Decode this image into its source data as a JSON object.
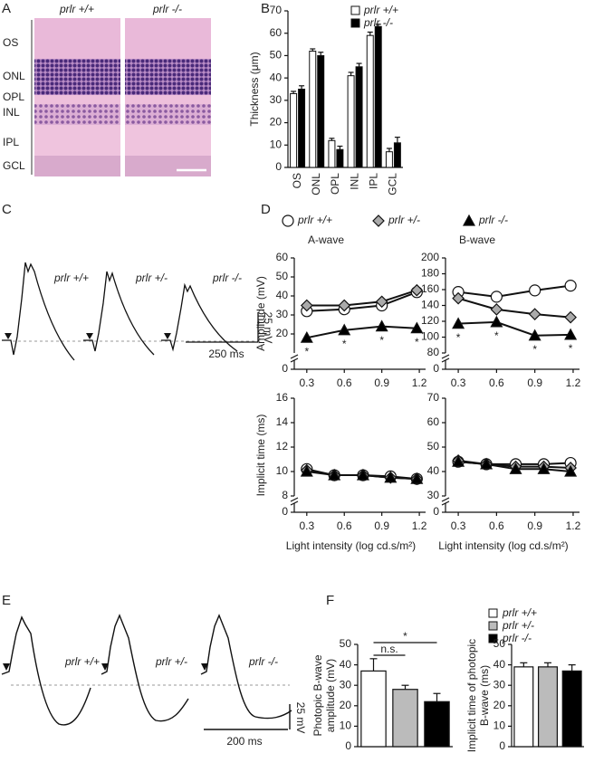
{
  "panel_labels": [
    "A",
    "B",
    "C",
    "D",
    "E",
    "F"
  ],
  "histology": {
    "genotypes": [
      "prlr +/+",
      "prlr -/-"
    ],
    "layers": [
      "OS",
      "ONL",
      "OPL",
      "INL",
      "IPL",
      "GCL"
    ]
  },
  "traces_c": {
    "labels": [
      "prlr +/+",
      "prlr +/-",
      "prlr -/-"
    ],
    "scale_y": "25 mV",
    "scale_x": "250 ms"
  },
  "traces_e": {
    "labels": [
      "prlr +/+",
      "prlr +/-",
      "prlr -/-"
    ],
    "scale_y": "25 mV",
    "scale_x": "200 ms"
  },
  "chart_data": [
    {
      "type": "bar",
      "y_label": "Thickness (μm)",
      "categories": [
        "OS",
        "ONL",
        "OPL",
        "INL",
        "IPL",
        "GCL"
      ],
      "series": [
        {
          "name": "prlr +/+",
          "color": "#ffffff",
          "values": [
            33,
            52,
            12,
            41,
            59,
            7
          ],
          "errors": [
            1,
            1,
            1,
            1.5,
            1.5,
            1.5
          ]
        },
        {
          "name": "prlr -/-",
          "color": "#000000",
          "values": [
            35,
            50,
            8,
            45,
            63,
            11
          ],
          "errors": [
            1.5,
            1.5,
            1.5,
            1.5,
            1,
            2.5
          ]
        }
      ],
      "ylim": [
        0,
        70
      ],
      "yticks": [
        0,
        10,
        20,
        30,
        40,
        50,
        60,
        70
      ]
    },
    {
      "type": "line",
      "title": "A-wave",
      "y_label": "Amplitude (mV)",
      "x": [
        0.3,
        0.6,
        0.9,
        1.18
      ],
      "series": [
        {
          "name": "prlr +/+",
          "color": "#ffffff",
          "marker": "circle",
          "values": [
            32,
            33,
            35,
            42
          ]
        },
        {
          "name": "prlr +/-",
          "color": "#aaaaaa",
          "marker": "diamond",
          "values": [
            35,
            35,
            37,
            43
          ]
        },
        {
          "name": "prlr -/-",
          "color": "#000000",
          "marker": "triangle",
          "values": [
            18,
            22,
            24,
            23
          ]
        }
      ],
      "stars": "*",
      "xlim": [
        0.2,
        1.25
      ],
      "xticks": [
        0.3,
        0.6,
        0.9,
        1.2
      ],
      "ylim": [
        10,
        60
      ],
      "yticks": [
        20,
        30,
        40,
        50,
        60
      ],
      "y_origin_label": 0
    },
    {
      "type": "line",
      "title": "B-wave",
      "x": [
        0.3,
        0.6,
        0.9,
        1.18
      ],
      "series": [
        {
          "name": "prlr +/+",
          "color": "#ffffff",
          "marker": "circle",
          "values": [
            157,
            151,
            159,
            165
          ]
        },
        {
          "name": "prlr +/-",
          "color": "#aaaaaa",
          "marker": "diamond",
          "values": [
            149,
            135,
            129,
            125
          ]
        },
        {
          "name": "prlr -/-",
          "color": "#000000",
          "marker": "triangle",
          "values": [
            117,
            119,
            102,
            103
          ]
        }
      ],
      "stars": "*",
      "xlim": [
        0.2,
        1.25
      ],
      "xticks": [
        0.3,
        0.6,
        0.9,
        1.2
      ],
      "ylim": [
        80,
        200
      ],
      "yticks": [
        80,
        100,
        120,
        140,
        160,
        180,
        200
      ],
      "y_origin_label": 0
    },
    {
      "type": "line",
      "y_label": "Implicit time (ms)",
      "x_label": "Light intensity (log cd.s/m²)",
      "x": [
        0.3,
        0.52,
        0.75,
        0.97,
        1.18
      ],
      "series": [
        {
          "name": "prlr +/+",
          "color": "#ffffff",
          "marker": "circle",
          "values": [
            10.2,
            9.7,
            9.7,
            9.6,
            9.4
          ]
        },
        {
          "name": "prlr +/-",
          "color": "#aaaaaa",
          "marker": "diamond",
          "values": [
            10.1,
            9.7,
            9.7,
            9.5,
            9.4
          ]
        },
        {
          "name": "prlr -/-",
          "color": "#000000",
          "marker": "triangle",
          "values": [
            10.0,
            9.7,
            9.7,
            9.5,
            9.4
          ]
        }
      ],
      "xlim": [
        0.2,
        1.25
      ],
      "xticks": [
        0.3,
        0.6,
        0.9,
        1.2
      ],
      "ylim": [
        8,
        16
      ],
      "yticks": [
        8,
        10,
        12,
        14,
        16
      ],
      "y_origin_label": 0
    },
    {
      "type": "line",
      "x_label": "Light intensity (log cd.s/m²)",
      "x": [
        0.3,
        0.52,
        0.75,
        0.97,
        1.18
      ],
      "series": [
        {
          "name": "prlr +/+",
          "color": "#ffffff",
          "marker": "circle",
          "values": [
            44,
            43,
            43,
            43,
            43.5
          ]
        },
        {
          "name": "prlr +/-",
          "color": "#aaaaaa",
          "marker": "diamond",
          "values": [
            44.5,
            43,
            42,
            42,
            41.5
          ]
        },
        {
          "name": "prlr -/-",
          "color": "#000000",
          "marker": "triangle",
          "values": [
            44,
            43,
            41,
            41,
            40
          ]
        }
      ],
      "xlim": [
        0.2,
        1.25
      ],
      "xticks": [
        0.3,
        0.6,
        0.9,
        1.2
      ],
      "ylim": [
        30,
        70
      ],
      "yticks": [
        30,
        40,
        50,
        60,
        70
      ],
      "y_origin_label": 0
    },
    {
      "type": "bar",
      "y_label": [
        "Photopic B-wave",
        "amplitude (mV)"
      ],
      "categories": [
        "prlr +/+",
        "prlr +/-",
        "prlr -/-"
      ],
      "colors": [
        "#ffffff",
        "#bbbbbb",
        "#000000"
      ],
      "values": [
        37,
        28,
        22
      ],
      "errors": [
        6,
        2,
        4
      ],
      "annotations": [
        "n.s.",
        "*"
      ],
      "ylim": [
        0,
        50
      ],
      "yticks": [
        0,
        10,
        20,
        30,
        40,
        50
      ]
    },
    {
      "type": "bar",
      "y_label": [
        "Implicit time of photopic",
        "B-wave (ms)"
      ],
      "categories": [
        "prlr +/+",
        "prlr +/-",
        "prlr -/-"
      ],
      "colors": [
        "#ffffff",
        "#bbbbbb",
        "#000000"
      ],
      "values": [
        39,
        39,
        37
      ],
      "errors": [
        2,
        2,
        3
      ],
      "ylim": [
        0,
        50
      ],
      "yticks": [
        0,
        10,
        20,
        30,
        40,
        50
      ]
    }
  ]
}
